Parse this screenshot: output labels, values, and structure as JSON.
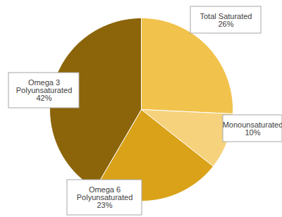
{
  "chart_data": {
    "type": "pie",
    "categories": [
      "Total Saturated",
      "Monounsaturated",
      "Omega 6 Polyunsaturated",
      "Omega 3 Polyunsaturated"
    ],
    "values": [
      26,
      10,
      23,
      42
    ],
    "value_labels": [
      "26%",
      "10%",
      "23%",
      "42%"
    ],
    "colors": [
      "#f1c24c",
      "#f6d27c",
      "#daa218",
      "#8c650a"
    ],
    "data_labels": true
  }
}
